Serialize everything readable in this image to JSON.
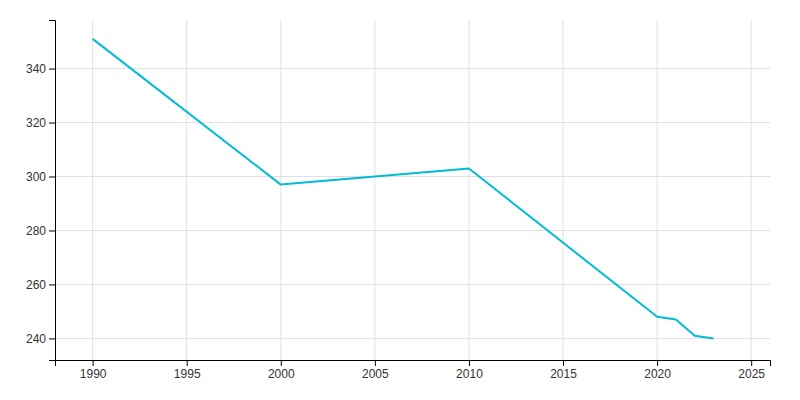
{
  "chart_data": {
    "type": "line",
    "x": [
      1990,
      2000,
      2005,
      2010,
      2020,
      2021,
      2022,
      2023
    ],
    "values": [
      351,
      297,
      300,
      303,
      248,
      247,
      241,
      240
    ],
    "color": "#00bcd4",
    "xlim": [
      1988,
      2026
    ],
    "ylim": [
      232,
      358
    ],
    "xticks": [
      1990,
      1995,
      2000,
      2005,
      2010,
      2015,
      2020,
      2025
    ],
    "yticks": [
      240,
      260,
      280,
      300,
      320,
      340
    ],
    "grid": true
  }
}
